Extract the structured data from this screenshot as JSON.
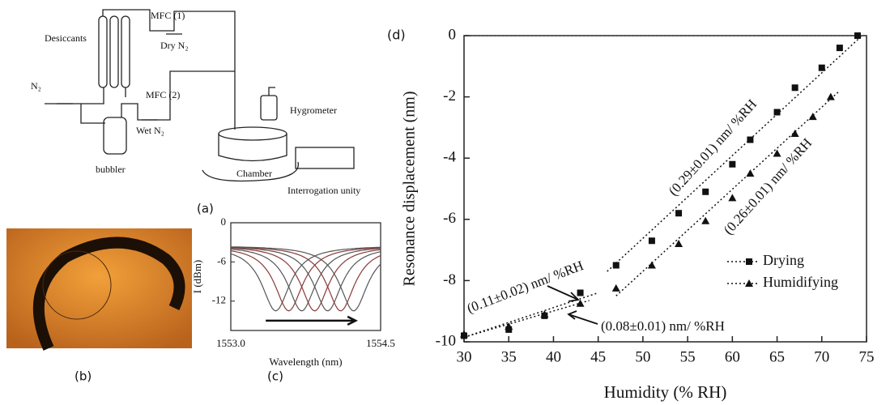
{
  "figure": {
    "panel_a": {
      "label": "(a)",
      "mfc1": "MFC (1)",
      "dry": "Dry N₂",
      "desiccants": "Desiccants",
      "n2": "N₂",
      "mfc2": "MFC (2)",
      "wet": "Wet N₂",
      "bubbler": "bubbler",
      "hygrometer": "Hygrometer",
      "chamber": "Chamber",
      "interrogation": "Interrogation unity"
    },
    "panel_b": {
      "label": "(b)"
    }
  },
  "chart_data": [
    {
      "type": "spectra",
      "label": "(c)",
      "xlabel": "Wavelength (nm)",
      "ylabel": "I (dBm)",
      "xlim": [
        1553.0,
        1554.5
      ],
      "xticks": [
        {
          "value": 1553.0,
          "label": "1553.0"
        },
        {
          "value": 1554.5,
          "label": "1554.5"
        }
      ],
      "ylim": [
        -16.5,
        0
      ],
      "yticks": [
        0,
        -6,
        -12
      ],
      "baseline": -3.5,
      "dip_depth": -13.5,
      "dip_centers": [
        1553.45,
        1553.58,
        1553.71,
        1553.84,
        1553.97,
        1554.1,
        1554.23
      ],
      "colors": [
        "#555555",
        "#8a3a3a",
        "#555555",
        "#8a3a3a",
        "#555555",
        "#8a3a3a",
        "#555555"
      ]
    },
    {
      "type": "scatter",
      "label": "(d)",
      "xlabel": "Humidity (% RH)",
      "ylabel": "Resonance displacement (nm)",
      "xlim": [
        30,
        75
      ],
      "xticks": [
        30,
        35,
        40,
        45,
        50,
        55,
        60,
        65,
        70,
        75
      ],
      "ylim": [
        -10,
        0
      ],
      "yticks": [
        0,
        -2,
        -4,
        -6,
        -8,
        -10
      ],
      "series": [
        {
          "name": "Drying",
          "color": "#111111",
          "marker": "square",
          "x": [
            30,
            35,
            39,
            43,
            47,
            51,
            54,
            57,
            60,
            62,
            65,
            67,
            70,
            72,
            74
          ],
          "values": [
            -9.8,
            -9.6,
            -9.15,
            -8.4,
            -7.5,
            -6.7,
            -5.8,
            -5.1,
            -4.2,
            -3.4,
            -2.5,
            -1.7,
            -1.05,
            -0.4,
            0
          ],
          "fits": [
            {
              "x": [
                30,
                45
              ],
              "values": [
                -9.85,
                -8.4
              ]
            },
            {
              "x": [
                46,
                74.5
              ],
              "values": [
                -7.7,
                0
              ]
            }
          ]
        },
        {
          "name": "Humidifying",
          "color": "#111111",
          "marker": "triangle",
          "x": [
            30,
            35,
            39,
            43,
            47,
            51,
            54,
            57,
            60,
            62,
            65,
            67,
            69,
            71
          ],
          "values": [
            -9.75,
            -9.5,
            -9.1,
            -8.75,
            -8.25,
            -7.5,
            -6.8,
            -6.05,
            -5.3,
            -4.5,
            -3.85,
            -3.2,
            -2.65,
            -2.0
          ],
          "fits": [
            {
              "x": [
                30,
                44
              ],
              "values": [
                -9.85,
                -8.65
              ]
            },
            {
              "x": [
                47,
                72
              ],
              "values": [
                -8.5,
                -1.8
              ]
            }
          ]
        }
      ],
      "annotations": [
        "(0.11±0.02) nm/ %RH",
        "(0.08±0.01) nm/ %RH",
        "(0.29±0.01) nm/ %RH",
        "(0.26±0.01) nm/ %RH"
      ]
    }
  ]
}
